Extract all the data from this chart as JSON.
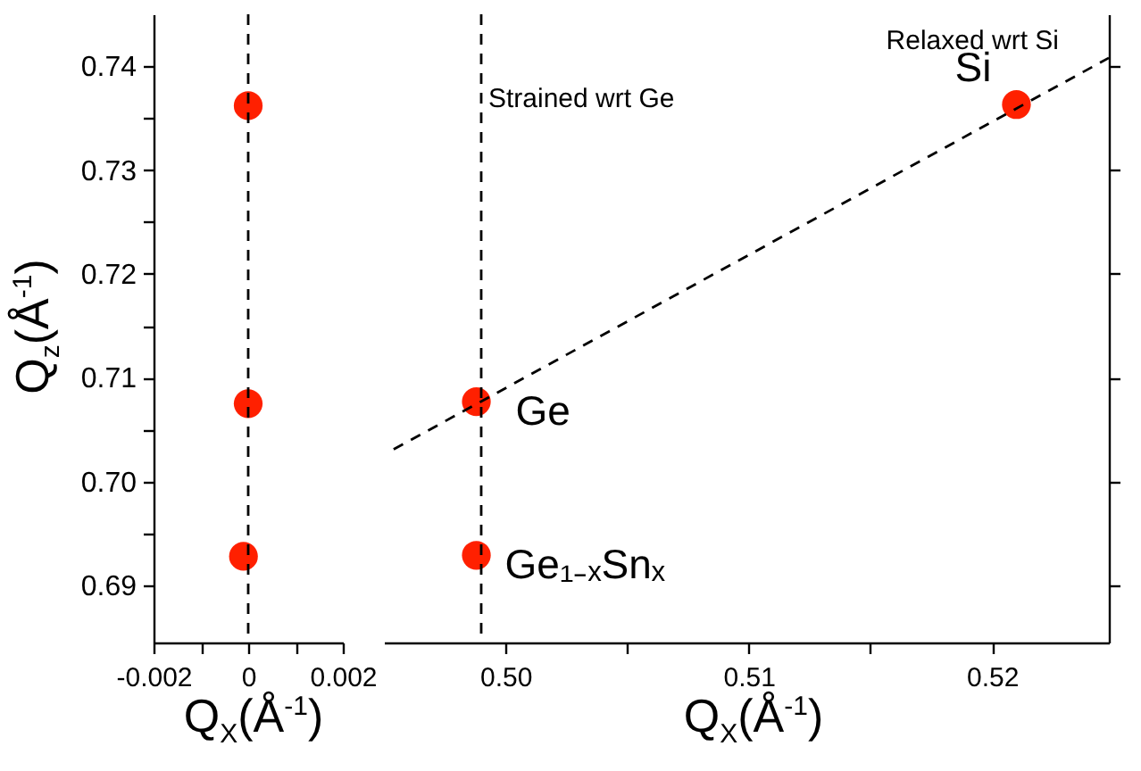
{
  "chart_data": [
    {
      "type": "scatter",
      "xlabel": "Q$_{X}$(Å$^{-1}$)",
      "ylabel": "Q$_{z}$(Å$^{-1}$)",
      "xlim": [
        -0.002,
        0.002
      ],
      "xticks": [
        -0.002,
        {
          "value": -0.001,
          "label": null
        },
        0,
        {
          "value": 0.001,
          "label": null
        },
        0.002
      ],
      "ylim": [
        0.6845,
        0.745
      ],
      "yticks": [
        0.69,
        {
          "value": 0.695,
          "label": null
        },
        "0.70",
        {
          "value": 0.705,
          "label": null
        },
        0.71,
        {
          "value": 0.715,
          "label": null
        },
        0.72,
        {
          "value": 0.725,
          "label": null
        },
        0.73,
        {
          "value": 0.735,
          "label": null
        },
        0.74
      ],
      "series": [
        {
          "color": "#ff2000",
          "x": [
            0,
            0,
            -0.0001
          ],
          "values": [
            0.7362,
            0.7075,
            0.6928
          ]
        }
      ],
      "ref_lines": [
        {
          "axis": "x",
          "value": 0,
          "label": null,
          "line_style": "dashed",
          "color": "#000000"
        }
      ],
      "grid": false,
      "marker": "circle"
    },
    {
      "type": "scatter",
      "xlabel": "Q$_{X}$(Å$^{-1}$)",
      "xlim": [
        0.495,
        0.5248
      ],
      "xticks": [
        "0.50",
        {
          "value": 0.505,
          "label": null
        },
        0.51,
        {
          "value": 0.515,
          "label": null
        },
        0.52
      ],
      "ylim": [
        0.6845,
        0.745
      ],
      "yticks": [
        0.69,
        0.7,
        0.71,
        0.72,
        0.73,
        0.74
      ],
      "series": [
        {
          "name": "Si",
          "color": "#ff2000",
          "x": [
            0.521
          ],
          "values": [
            0.7363
          ]
        },
        {
          "name": "Ge",
          "color": "#ff2000",
          "x": [
            0.4988
          ],
          "values": [
            0.7077
          ]
        },
        {
          "name": "Ge₁₋ₓSnₓ",
          "color": "#ff2000",
          "x": [
            0.4988
          ],
          "values": [
            0.6929
          ]
        },
        {
          "type": "line",
          "name": "Relaxed wrt Si",
          "color": "#000000",
          "line_style": "dashed",
          "marker": "none",
          "x": [
            0.4954,
            0.5248
          ],
          "values": [
            0.7031,
            0.7408
          ]
        }
      ],
      "ref_lines": [
        {
          "axis": "x",
          "value": 0.499,
          "label": "Strained wrt Ge",
          "line_style": "dashed",
          "color": "#000000"
        }
      ],
      "tick_labels": "x",
      "grid": false,
      "marker": "circle"
    }
  ]
}
